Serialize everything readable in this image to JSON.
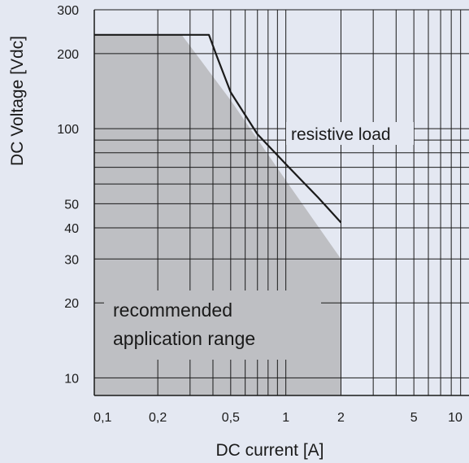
{
  "chart_data": {
    "type": "line",
    "title": "",
    "xlabel": "DC current [A]",
    "ylabel": "DC Voltage [Vdc]",
    "x_scale": "log",
    "y_scale": "log",
    "xlim": [
      0.09,
      10
    ],
    "ylim": [
      8.5,
      300
    ],
    "grid": true,
    "x_ticks": [
      {
        "value": 0.1,
        "label": "0,1"
      },
      {
        "value": 0.2,
        "label": "0,2"
      },
      {
        "value": 0.5,
        "label": "0,5"
      },
      {
        "value": 1,
        "label": "1"
      },
      {
        "value": 2,
        "label": "2"
      },
      {
        "value": 5,
        "label": "5"
      },
      {
        "value": 10,
        "label": "10"
      }
    ],
    "y_ticks": [
      {
        "value": 10,
        "label": "10"
      },
      {
        "value": 20,
        "label": "20"
      },
      {
        "value": 30,
        "label": "30"
      },
      {
        "value": 40,
        "label": "40"
      },
      {
        "value": 50,
        "label": "50"
      },
      {
        "value": 100,
        "label": "100"
      },
      {
        "value": 200,
        "label": "200"
      },
      {
        "value": 300,
        "label": "300"
      }
    ],
    "series": [
      {
        "name": "resistive load",
        "points": [
          [
            0.09,
            238
          ],
          [
            0.38,
            238
          ],
          [
            0.42,
            195
          ],
          [
            0.5,
            140
          ],
          [
            0.7,
            95
          ],
          [
            1.0,
            72
          ],
          [
            1.5,
            53
          ],
          [
            2.0,
            42
          ]
        ]
      }
    ],
    "area": {
      "name": "recommended application range",
      "points": [
        [
          0.09,
          238
        ],
        [
          0.27,
          238
        ],
        [
          0.5,
          130
        ],
        [
          1.0,
          62
        ],
        [
          2.0,
          30
        ],
        [
          2.0,
          8.5
        ],
        [
          0.09,
          8.5
        ]
      ]
    },
    "colors": {
      "background": "#e4e8f2",
      "area_fill": "#bebfc3",
      "grid": "#1a1a1a",
      "curve": "#1a1a1a"
    }
  }
}
